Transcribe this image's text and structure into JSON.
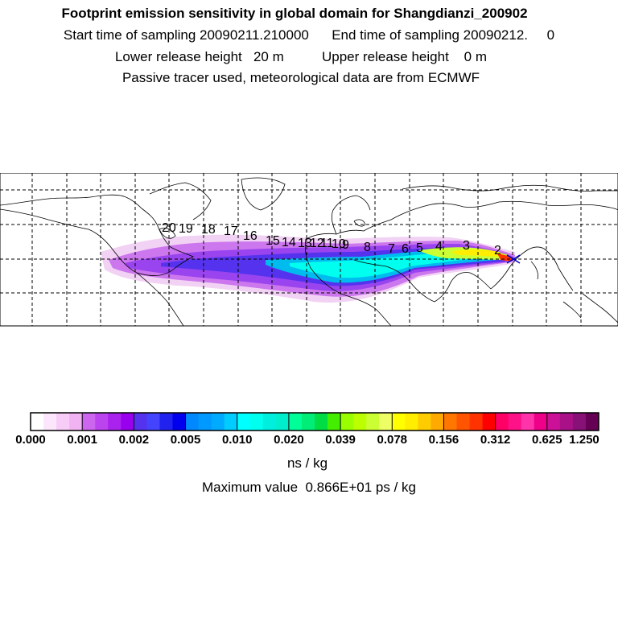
{
  "header": {
    "title": "Footprint emission sensitivity in global domain for Shangdianzi_200902",
    "sampling": "Start time of sampling 20090211.210000      End time of sampling 20090212.     0",
    "heights": "Lower release height   20 m          Upper release height    0 m",
    "tracer": "Passive tracer used, meteorological data are from ECMWF"
  },
  "map": {
    "day_markers": [
      "2",
      "3",
      "4",
      "5",
      "6",
      "7",
      "8",
      "9",
      "10",
      "11",
      "12",
      "13",
      "14",
      "15",
      "16",
      "17",
      "18",
      "19",
      "20"
    ]
  },
  "colorbar": {
    "colors": [
      "#ffffff",
      "#fbe6fb",
      "#f7ccf7",
      "#f2b3f2",
      "#cc66ee",
      "#bb44ee",
      "#aa22ee",
      "#9900ee",
      "#5533ee",
      "#4444ff",
      "#2222ee",
      "#0000ee",
      "#0088ff",
      "#0099ff",
      "#00aaff",
      "#00ccff",
      "#00ffff",
      "#00ffee",
      "#00eedd",
      "#00eecc",
      "#00ff99",
      "#00ee77",
      "#00dd44",
      "#44ee00",
      "#99ff00",
      "#bbff00",
      "#ccff33",
      "#eeff66",
      "#ffff00",
      "#ffee00",
      "#ffcc00",
      "#ffaa00",
      "#ff7700",
      "#ff5500",
      "#ff3300",
      "#ff0000",
      "#ff0066",
      "#ff1188",
      "#ff33aa",
      "#ee0088",
      "#cc1199",
      "#aa1188",
      "#881177",
      "#660055"
    ],
    "tick_labels": [
      "0.000",
      "0.001",
      "0.002",
      "0.005",
      "0.010",
      "0.020",
      "0.039",
      "0.078",
      "0.156",
      "0.312",
      "0.625",
      "1.250"
    ],
    "unit": "ns / kg"
  },
  "max_value": "Maximum value  0.866E+01 ps / kg"
}
